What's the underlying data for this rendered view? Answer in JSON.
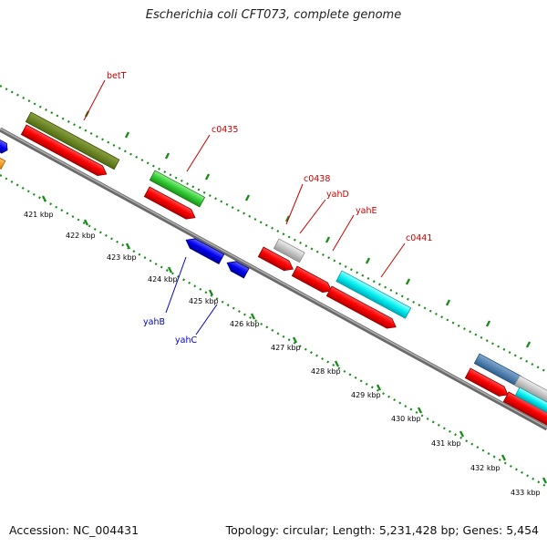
{
  "title": "Escherichia coli CFT073, complete genome",
  "accession_label": "Accession: NC_004431",
  "summary_label": "Topology: circular; Length: 5,231,428 bp; Genes: 5,454",
  "colors": {
    "backbone": "#8c8c8c",
    "tick": "#1a8c1a",
    "forward_label": "#cc0000",
    "reverse_label": "#0000cc"
  },
  "kbp_ticks": [
    "421 kbp",
    "422 kbp",
    "423 kbp",
    "424 kbp",
    "425 kbp",
    "426 kbp",
    "427 kbp",
    "428 kbp",
    "429 kbp",
    "430 kbp",
    "431 kbp",
    "432 kbp",
    "433 kbp"
  ],
  "gene_labels": [
    {
      "text": "betT",
      "strand": "forward"
    },
    {
      "text": "c0435",
      "strand": "forward"
    },
    {
      "text": "c0438",
      "strand": "forward"
    },
    {
      "text": "yahD",
      "strand": "forward"
    },
    {
      "text": "yahE",
      "strand": "forward"
    },
    {
      "text": "c0441",
      "strand": "forward"
    },
    {
      "text": "yahB",
      "strand": "reverse"
    },
    {
      "text": "yahC",
      "strand": "reverse"
    }
  ]
}
